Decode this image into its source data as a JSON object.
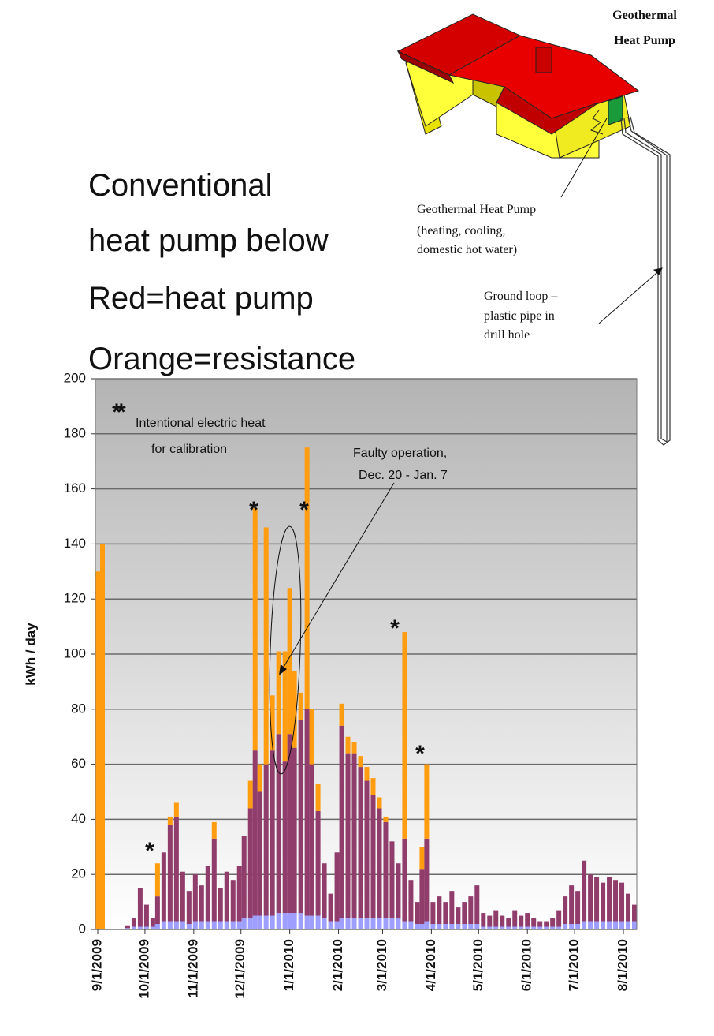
{
  "chart_data": {
    "type": "bar",
    "stacked": true,
    "y_label": "kWh / day",
    "ylim": [
      0,
      200
    ],
    "yticks": [
      0,
      20,
      40,
      60,
      80,
      100,
      120,
      140,
      160,
      180,
      200
    ],
    "grid": true,
    "xlim": [
      "9/1/2009",
      "8/11/2010"
    ],
    "xticks": [
      "9/1/2009",
      "10/1/2009",
      "11/1/2009",
      "12/1/2009",
      "1/1/2010",
      "2/1/2010",
      "3/1/2010",
      "4/1/2010",
      "5/1/2010",
      "6/1/2010",
      "7/1/2010",
      "8/1/2010"
    ],
    "x": [
      "9/1/2009",
      "9/4/2009",
      "9/8/2009",
      "9/12/2009",
      "9/16/2009",
      "9/20/2009",
      "9/24/2009",
      "9/28/2009",
      "10/2/2009",
      "10/6/2009",
      "10/9/2009",
      "10/13/2009",
      "10/17/2009",
      "10/21/2009",
      "10/25/2009",
      "10/29/2009",
      "11/2/2009",
      "11/6/2009",
      "11/10/2009",
      "11/14/2009",
      "11/18/2009",
      "11/22/2009",
      "11/26/2009",
      "11/30/2009",
      "12/3/2009",
      "12/7/2009",
      "12/10/2009",
      "12/13/2009",
      "12/17/2009",
      "12/21/2009",
      "12/25/2009",
      "12/29/2009",
      "1/1/2010",
      "1/4/2010",
      "1/8/2010",
      "1/12/2010",
      "1/15/2010",
      "1/19/2010",
      "1/23/2010",
      "1/27/2010",
      "1/31/2010",
      "2/3/2010",
      "2/7/2010",
      "2/11/2010",
      "2/15/2010",
      "2/19/2010",
      "2/23/2010",
      "2/27/2010",
      "3/3/2010",
      "3/7/2010",
      "3/11/2010",
      "3/15/2010",
      "3/19/2010",
      "3/23/2010",
      "3/26/2010",
      "3/29/2010",
      "4/2/2010",
      "4/6/2010",
      "4/10/2010",
      "4/14/2010",
      "4/18/2010",
      "4/22/2010",
      "4/26/2010",
      "4/30/2010",
      "5/4/2010",
      "5/8/2010",
      "5/12/2010",
      "5/16/2010",
      "5/20/2010",
      "5/24/2010",
      "5/28/2010",
      "6/1/2010",
      "6/5/2010",
      "6/9/2010",
      "6/13/2010",
      "6/17/2010",
      "6/21/2010",
      "6/25/2010",
      "6/29/2010",
      "7/3/2010",
      "7/7/2010",
      "7/11/2010",
      "7/15/2010",
      "7/19/2010",
      "7/23/2010",
      "7/27/2010",
      "7/31/2010",
      "8/4/2010",
      "8/8/2010"
    ],
    "series": [
      {
        "color": "#9e9eff",
        "values": [
          0,
          0,
          0,
          0,
          0,
          0.5,
          1,
          1,
          1,
          1,
          2,
          3,
          3,
          3,
          3,
          2,
          3,
          3,
          3,
          3,
          3,
          3,
          3,
          3,
          4,
          4,
          5,
          5,
          5,
          5,
          6,
          6,
          6,
          6,
          6,
          5,
          5,
          5,
          4,
          3,
          3,
          4,
          4,
          4,
          4,
          4,
          4,
          4,
          4,
          4,
          4,
          3,
          3,
          2,
          2,
          3,
          2,
          2,
          2,
          2,
          2,
          2,
          2,
          2,
          1,
          1,
          1,
          1,
          1,
          1,
          1,
          1,
          1,
          1,
          1,
          1,
          1,
          2,
          2,
          2,
          3,
          3,
          3,
          3,
          3,
          3,
          3,
          3,
          3
        ]
      },
      {
        "color": "#913d6c",
        "values": [
          0,
          0,
          0,
          0,
          0,
          1,
          3,
          14,
          8,
          3,
          10,
          25,
          35,
          38,
          18,
          12,
          17,
          13,
          20,
          30,
          12,
          18,
          15,
          20,
          30,
          40,
          60,
          45,
          55,
          60,
          65,
          55,
          65,
          60,
          70,
          75,
          55,
          38,
          20,
          10,
          25,
          70,
          60,
          60,
          55,
          50,
          45,
          40,
          35,
          28,
          20,
          30,
          15,
          8,
          20,
          30,
          8,
          10,
          8,
          12,
          6,
          8,
          10,
          14,
          5,
          4,
          6,
          4,
          3,
          6,
          4,
          5,
          3,
          2,
          2,
          3,
          6,
          10,
          14,
          12,
          22,
          17,
          16,
          14,
          16,
          15,
          14,
          10,
          6
        ]
      },
      {
        "color": "#ff9c0f",
        "values": [
          130,
          140,
          0,
          0,
          0,
          0,
          0,
          0,
          0,
          0,
          12,
          0,
          3,
          5,
          0,
          0,
          0,
          0,
          0,
          6,
          0,
          0,
          0,
          0,
          0,
          10,
          88,
          10,
          86,
          20,
          30,
          40,
          53,
          28,
          10,
          95,
          20,
          10,
          0,
          0,
          0,
          8,
          6,
          4,
          4,
          5,
          6,
          4,
          2,
          0,
          0,
          75,
          0,
          0,
          8,
          27,
          0,
          0,
          0,
          0,
          0,
          0,
          0,
          0,
          0,
          0,
          0,
          0,
          0,
          0,
          0,
          0,
          0,
          0,
          0,
          0,
          0,
          0,
          0,
          0,
          0,
          0,
          0,
          0,
          0,
          0,
          0,
          0,
          0
        ]
      }
    ],
    "annotations": [
      "Intentional electric heat",
      "for calibration",
      "Faulty operation,",
      "Dec. 20 - Jan. 7"
    ],
    "markers": [
      "*",
      "*",
      "*",
      "*",
      "*",
      "*",
      "*"
    ]
  },
  "caption": [
    "Conventional",
    "heat pump below",
    "Red=heat pump",
    "Orange=resistance"
  ],
  "diagram": {
    "title": [
      "Geothermal",
      "Heat Pump"
    ],
    "pump_label": [
      "Geothermal Heat Pump",
      "(heating, cooling,",
      "domestic hot water)"
    ],
    "loop_label": [
      "Ground loop –",
      "plastic pipe in",
      "drill hole"
    ]
  }
}
